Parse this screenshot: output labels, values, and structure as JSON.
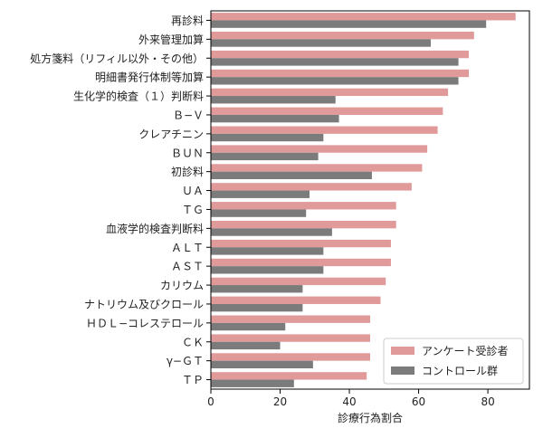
{
  "chart_data": {
    "type": "bar",
    "orientation": "horizontal",
    "categories": [
      "再診料",
      "外来管理加算",
      "処方箋料（リフィル以外・その他）",
      "明細書発行体制等加算",
      "生化学的検査（１）判断料",
      "Ｂ−Ｖ",
      "クレアチニン",
      "ＢＵＮ",
      "初診料",
      "ＵＡ",
      "ＴＧ",
      "血液学的検査判断料",
      "ＡＬＴ",
      "ＡＳＴ",
      "カリウム",
      "ナトリウム及びクロール",
      "ＨＤＬ−コレステロール",
      "ＣＫ",
      "γ−ＧＴ",
      "ＴＰ"
    ],
    "series": [
      {
        "name": "アンケート受診者",
        "color": "#e09a9a",
        "values": [
          88.0,
          76.0,
          74.5,
          74.5,
          68.5,
          67.0,
          65.5,
          62.5,
          61.0,
          58.0,
          53.5,
          53.5,
          52.0,
          52.0,
          50.5,
          49.0,
          46.0,
          46.0,
          46.0,
          45.0
        ]
      },
      {
        "name": "コントロール群",
        "color": "#7b7b7b",
        "values": [
          79.5,
          63.5,
          71.5,
          71.5,
          36.0,
          37.0,
          32.5,
          31.0,
          46.5,
          28.5,
          27.5,
          35.0,
          32.5,
          32.5,
          26.5,
          26.5,
          21.5,
          20.0,
          29.5,
          24.0
        ]
      }
    ],
    "xlabel": "診療行為割合",
    "ylabel": "",
    "xlim": [
      0,
      92
    ],
    "xticks": [
      0,
      20,
      40,
      60,
      80
    ],
    "grid": false,
    "legend": "lower-right"
  }
}
